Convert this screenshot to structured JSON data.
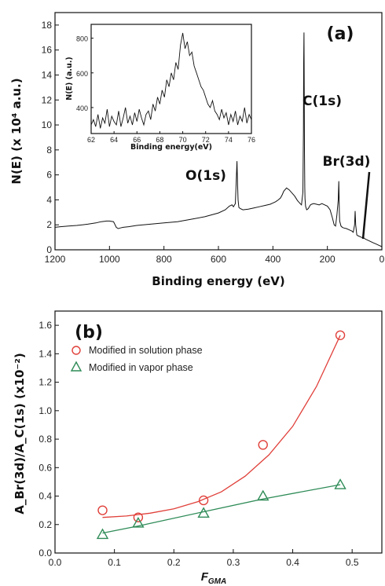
{
  "chart_data": [
    {
      "id": "a",
      "type": "line",
      "panel_label": "(a)",
      "xlabel": "Binding energy (eV)",
      "ylabel": "N(E) (x 10⁴ a.u.)",
      "xlim": [
        1200,
        0
      ],
      "ylim": [
        0,
        19
      ],
      "x_reversed": true,
      "x_ticks": [
        1200,
        1000,
        800,
        600,
        400,
        200,
        0
      ],
      "y_ticks": [
        0,
        2,
        4,
        6,
        8,
        10,
        12,
        14,
        16,
        18
      ],
      "series": [
        {
          "color": "#111111",
          "x": [
            1200,
            1180,
            1150,
            1120,
            1100,
            1080,
            1050,
            1030,
            1010,
            1000,
            985,
            975,
            968,
            960,
            950,
            930,
            900,
            850,
            800,
            750,
            700,
            650,
            600,
            575,
            560,
            550,
            545,
            538,
            535,
            532,
            530,
            528,
            525,
            520,
            510,
            490,
            470,
            450,
            430,
            410,
            400,
            390,
            380,
            372,
            366,
            360,
            350,
            340,
            320,
            310,
            300,
            295,
            290,
            288,
            287,
            286,
            285,
            284,
            283,
            282,
            280,
            276,
            270,
            265,
            262,
            258,
            250,
            240,
            230,
            220,
            210,
            200,
            190,
            182,
            175,
            170,
            165,
            160,
            158,
            157,
            156,
            155,
            150,
            145,
            140,
            130,
            120,
            110,
            105,
            100,
            98,
            96,
            92,
            90,
            85,
            80,
            75,
            70,
            68,
            66,
            60,
            50,
            40,
            30,
            20,
            10,
            0
          ],
          "y": [
            1.8,
            1.85,
            1.9,
            1.95,
            2.0,
            2.05,
            2.15,
            2.25,
            2.3,
            2.3,
            2.25,
            1.8,
            1.7,
            1.75,
            1.8,
            1.85,
            1.95,
            2.05,
            2.15,
            2.25,
            2.45,
            2.65,
            2.95,
            3.2,
            3.5,
            3.6,
            3.45,
            3.7,
            5.2,
            7.1,
            5.4,
            4.0,
            3.4,
            3.3,
            3.2,
            3.25,
            3.35,
            3.45,
            3.55,
            3.65,
            3.75,
            3.85,
            4.0,
            4.15,
            4.4,
            4.7,
            4.95,
            4.8,
            4.3,
            3.95,
            3.7,
            3.6,
            4.6,
            9.5,
            15.0,
            17.4,
            13.0,
            8.0,
            5.0,
            4.1,
            3.5,
            3.2,
            3.3,
            3.5,
            3.6,
            3.65,
            3.7,
            3.65,
            3.6,
            3.7,
            3.6,
            3.5,
            3.2,
            2.6,
            2.0,
            1.9,
            2.8,
            4.0,
            5.5,
            4.2,
            3.0,
            2.3,
            1.9,
            1.8,
            1.75,
            1.7,
            1.6,
            1.5,
            1.4,
            2.0,
            3.1,
            2.0,
            1.2,
            1.15,
            1.1,
            1.05,
            1.0,
            0.95,
            1.3,
            0.95,
            0.85,
            0.75,
            0.65,
            0.55,
            0.45,
            0.35,
            0.25
          ]
        }
      ],
      "annotations": [
        {
          "text": "O(1s)",
          "x": 530,
          "y": 7.1
        },
        {
          "text": "C(1s)",
          "x": 285,
          "y": 17.4
        },
        {
          "text": "Br(3d)",
          "x": 68,
          "y": 1.2
        }
      ],
      "inset": {
        "type": "line",
        "xlabel": "Binding energy(eV)",
        "ylabel": "N(E) (a.u.)",
        "xlim": [
          62,
          76
        ],
        "ylim": [
          250,
          880
        ],
        "x_ticks": [
          62,
          64,
          66,
          68,
          70,
          72,
          74,
          76
        ],
        "y_ticks": [
          400,
          600,
          800
        ],
        "series": [
          {
            "color": "#111111",
            "x": [
              62.0,
              62.2,
              62.4,
              62.6,
              62.8,
              63.0,
              63.2,
              63.4,
              63.6,
              63.8,
              64.0,
              64.2,
              64.4,
              64.6,
              64.8,
              65.0,
              65.2,
              65.4,
              65.6,
              65.8,
              66.0,
              66.2,
              66.4,
              66.6,
              66.8,
              67.0,
              67.2,
              67.4,
              67.6,
              67.8,
              68.0,
              68.2,
              68.4,
              68.6,
              68.8,
              69.0,
              69.2,
              69.4,
              69.6,
              69.8,
              70.0,
              70.2,
              70.4,
              70.6,
              70.8,
              71.0,
              71.2,
              71.4,
              71.6,
              71.8,
              72.0,
              72.2,
              72.4,
              72.6,
              72.8,
              73.0,
              73.2,
              73.4,
              73.6,
              73.8,
              74.0,
              74.2,
              74.4,
              74.6,
              74.8,
              75.0,
              75.2,
              75.4,
              75.6,
              75.8,
              76.0
            ],
            "y": [
              300,
              330,
              290,
              360,
              280,
              340,
              310,
              390,
              290,
              350,
              320,
              300,
              380,
              290,
              340,
              400,
              310,
              350,
              300,
              370,
              320,
              390,
              340,
              300,
              360,
              380,
              330,
              420,
              380,
              460,
              420,
              500,
              460,
              560,
              520,
              600,
              560,
              660,
              620,
              760,
              830,
              740,
              780,
              700,
              720,
              640,
              600,
              560,
              520,
              500,
              460,
              420,
              400,
              440,
              380,
              360,
              330,
              390,
              340,
              370,
              300,
              360,
              320,
              380,
              300,
              350,
              320,
              400,
              310,
              360,
              330
            ]
          }
        ]
      }
    },
    {
      "id": "b",
      "type": "scatter",
      "panel_label": "(b)",
      "xlabel": "F",
      "xlabel_sub": "GMA",
      "ylabel": "A_Br(3d)/A_C(1s) (x10⁻²)",
      "xlim": [
        0.0,
        0.55
      ],
      "ylim": [
        0.0,
        1.7
      ],
      "x_ticks": [
        0.0,
        0.1,
        0.2,
        0.3,
        0.4,
        0.5
      ],
      "y_ticks": [
        0.0,
        0.2,
        0.4,
        0.6,
        0.8,
        1.0,
        1.2,
        1.4,
        1.6
      ],
      "legend_position": "top-left",
      "series": [
        {
          "name": "Modified in solution phase",
          "marker": "circle",
          "color": "#e0403a",
          "x": [
            0.08,
            0.14,
            0.25,
            0.35,
            0.48
          ],
          "y": [
            0.3,
            0.25,
            0.37,
            0.76,
            1.53
          ],
          "fit": {
            "x": [
              0.08,
              0.12,
              0.16,
              0.2,
              0.24,
              0.28,
              0.32,
              0.36,
              0.4,
              0.44,
              0.48
            ],
            "y": [
              0.25,
              0.26,
              0.28,
              0.31,
              0.36,
              0.43,
              0.54,
              0.69,
              0.89,
              1.17,
              1.53
            ]
          }
        },
        {
          "name": "Modified in vapor phase",
          "marker": "triangle",
          "color": "#2e8b57",
          "x": [
            0.08,
            0.14,
            0.25,
            0.35,
            0.48
          ],
          "y": [
            0.13,
            0.21,
            0.28,
            0.4,
            0.48
          ],
          "fit": {
            "x": [
              0.08,
              0.14,
              0.25,
              0.35,
              0.48
            ],
            "y": [
              0.14,
              0.19,
              0.29,
              0.38,
              0.48
            ]
          }
        }
      ]
    }
  ]
}
